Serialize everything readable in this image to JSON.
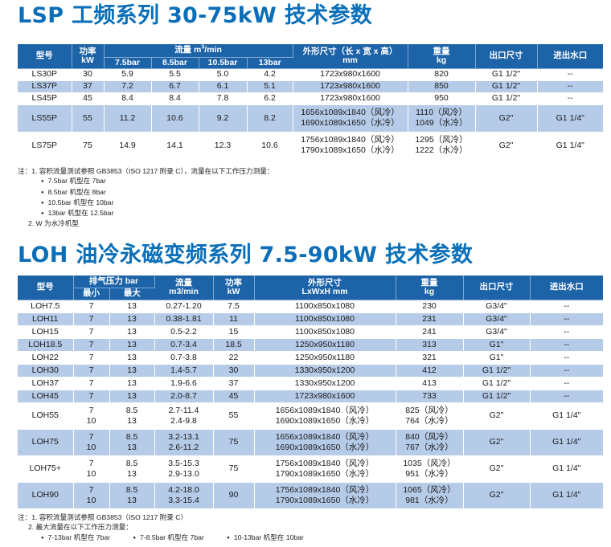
{
  "lsp": {
    "title": "LSP 工频系列 30-75kW 技术参数",
    "headers": {
      "model": "型号",
      "power": "功率",
      "power_unit": "kW",
      "flow": "流量 m",
      "flow_sup": "3",
      "flow_unit": "/min",
      "p1": "7.5bar",
      "p2": "8.5bar",
      "p3": "10.5bar",
      "p4": "13bar",
      "dims": "外形尺寸（长 x 宽 x 高）",
      "dims_unit": "mm",
      "weight": "重量",
      "weight_unit": "kg",
      "outlet": "出口尺寸",
      "water": "进出水口"
    },
    "rows": [
      {
        "model": "LS30P",
        "power": "30",
        "f1": "5.9",
        "f2": "5.5",
        "f3": "5.0",
        "f4": "4.2",
        "dims": "1723x980x1600",
        "weight": "820",
        "outlet": "G1 1/2\"",
        "water": "--"
      },
      {
        "model": "LS37P",
        "power": "37",
        "f1": "7.2",
        "f2": "6.7",
        "f3": "6.1",
        "f4": "5.1",
        "dims": "1723x980x1600",
        "weight": "850",
        "outlet": "G1 1/2\"",
        "water": "--"
      },
      {
        "model": "LS45P",
        "power": "45",
        "f1": "8.4",
        "f2": "8.4",
        "f3": "7.8",
        "f4": "6.2",
        "dims": "1723x980x1600",
        "weight": "950",
        "outlet": "G1 1/2\"",
        "water": "--"
      },
      {
        "model": "LS55P",
        "power": "55",
        "f1": "11.2",
        "f2": "10.6",
        "f3": "9.2",
        "f4": "8.2",
        "dims_a": "1656x1089x1840（风冷）",
        "dims_b": "1690x1089x1650（水冷）",
        "weight_a": "1110（风冷）",
        "weight_b": "1049（水冷）",
        "outlet": "G2\"",
        "water": "G1 1/4\""
      },
      {
        "model": "LS75P",
        "power": "75",
        "f1": "14.9",
        "f2": "14.1",
        "f3": "12.3",
        "f4": "10.6",
        "dims_a": "1756x1089x1840（风冷）",
        "dims_b": "1790x1089x1650（水冷）",
        "weight_a": "1295（风冷）",
        "weight_b": "1222（水冷）",
        "outlet": "G2\"",
        "water": "G1 1/4\""
      }
    ],
    "notes": {
      "n1": "注：1. 容积流量测试参照 GB3853（ISO 1217 附录 C），流量在以下工作压力测量：",
      "b1": "7.5bar 机型在 7bar",
      "b2": "8.5bar 机型在 8bar",
      "b3": "10.5bar 机型在 10bar",
      "b4": "13bar 机型在 12.5bar",
      "n2": "2. W 为水冷机型"
    }
  },
  "loh": {
    "title": "LOH 油冷永磁变频系列 7.5-90kW 技术参数",
    "headers": {
      "model": "型号",
      "pressure": "排气压力 bar",
      "pmin": "最小",
      "pmax": "最大",
      "flow": "流量",
      "flow_unit": "m3/min",
      "power": "功率",
      "power_unit": "kW",
      "dims": "外形尺寸",
      "dims_unit": "LxWxH mm",
      "weight": "重量",
      "weight_unit": "kg",
      "outlet": "出口尺寸",
      "water": "进出水口"
    },
    "rows": [
      {
        "model": "LOH7.5",
        "pmin": "7",
        "pmax": "13",
        "flow": "0.27-1.20",
        "power": "7.5",
        "dims": "1100x850x1080",
        "weight": "230",
        "outlet": "G3/4\"",
        "water": "--"
      },
      {
        "model": "LOH11",
        "pmin": "7",
        "pmax": "13",
        "flow": "0.38-1.81",
        "power": "11",
        "dims": "1100x850x1080",
        "weight": "231",
        "outlet": "G3/4\"",
        "water": "--"
      },
      {
        "model": "LOH15",
        "pmin": "7",
        "pmax": "13",
        "flow": "0.5-2.2",
        "power": "15",
        "dims": "1100x850x1080",
        "weight": "241",
        "outlet": "G3/4\"",
        "water": "--"
      },
      {
        "model": "LOH18.5",
        "pmin": "7",
        "pmax": "13",
        "flow": "0.7-3.4",
        "power": "18.5",
        "dims": "1250x950x1180",
        "weight": "313",
        "outlet": "G1\"",
        "water": "--"
      },
      {
        "model": "LOH22",
        "pmin": "7",
        "pmax": "13",
        "flow": "0.7-3.8",
        "power": "22",
        "dims": "1250x950x1180",
        "weight": "321",
        "outlet": "G1\"",
        "water": "--"
      },
      {
        "model": "LOH30",
        "pmin": "7",
        "pmax": "13",
        "flow": "1.4-5.7",
        "power": "30",
        "dims": "1330x950x1200",
        "weight": "412",
        "outlet": "G1 1/2\"",
        "water": "--"
      },
      {
        "model": "LOH37",
        "pmin": "7",
        "pmax": "13",
        "flow": "1.9-6.6",
        "power": "37",
        "dims": "1330x950x1200",
        "weight": "413",
        "outlet": "G1 1/2\"",
        "water": "--"
      },
      {
        "model": "LOH45",
        "pmin": "7",
        "pmax": "13",
        "flow": "2.0-8.7",
        "power": "45",
        "dims": "1723x980x1600",
        "weight": "733",
        "outlet": "G1 1/2\"",
        "water": "--"
      },
      {
        "model": "LOH55",
        "pmin_a": "7",
        "pmin_b": "10",
        "pmax_a": "8.5",
        "pmax_b": "13",
        "flow_a": "2.7-11.4",
        "flow_b": "2.4-9.8",
        "power": "55",
        "dims_a": "1656x1089x1840（风冷）",
        "dims_b": "1690x1089x1650（水冷）",
        "weight_a": "825（风冷）",
        "weight_b": "764（水冷）",
        "outlet": "G2\"",
        "water": "G1 1/4\""
      },
      {
        "model": "LOH75",
        "pmin_a": "7",
        "pmin_b": "10",
        "pmax_a": "8.5",
        "pmax_b": "13",
        "flow_a": "3.2-13.1",
        "flow_b": "2.6-11.2",
        "power": "75",
        "dims_a": "1656x1089x1840（风冷）",
        "dims_b": "1690x1089x1650（水冷）",
        "weight_a": "840（风冷）",
        "weight_b": "767（水冷）",
        "outlet": "G2\"",
        "water": "G1 1/4\""
      },
      {
        "model": "LOH75+",
        "pmin_a": "7",
        "pmin_b": "10",
        "pmax_a": "8.5",
        "pmax_b": "13",
        "flow_a": "3.5-15.3",
        "flow_b": "2.9-13.0",
        "power": "75",
        "dims_a": "1756x1089x1840（风冷）",
        "dims_b": "1790x1089x1650（水冷）",
        "weight_a": "1035（风冷）",
        "weight_b": "951（水冷）",
        "outlet": "G2\"",
        "water": "G1 1/4\""
      },
      {
        "model": "LOH90",
        "pmin_a": "7",
        "pmin_b": "10",
        "pmax_a": "8.5",
        "pmax_b": "13",
        "flow_a": "4.2-18.0",
        "flow_b": "3.3-15.4",
        "power": "90",
        "dims_a": "1756x1089x1840（风冷）",
        "dims_b": "1790x1089x1650（水冷）",
        "weight_a": "1065（风冷）",
        "weight_b": "981（水冷）",
        "outlet": "G2\"",
        "water": "G1 1/4\""
      }
    ],
    "notes": {
      "n1": "注：1. 容积流量测试参照 GB3853（ISO 1217 附录 C）",
      "n2": "2. 最大流量在以下工作压力测量：",
      "b1": "7-13bar 机型在 7bar",
      "b2": "7-8.5bar 机型在 7bar",
      "b3": "10-13bar 机型在 10bar"
    }
  },
  "colors": {
    "title": "#0a6fb8",
    "header_bg": "#1d63a8",
    "row_alt": "#b5cbe8"
  }
}
